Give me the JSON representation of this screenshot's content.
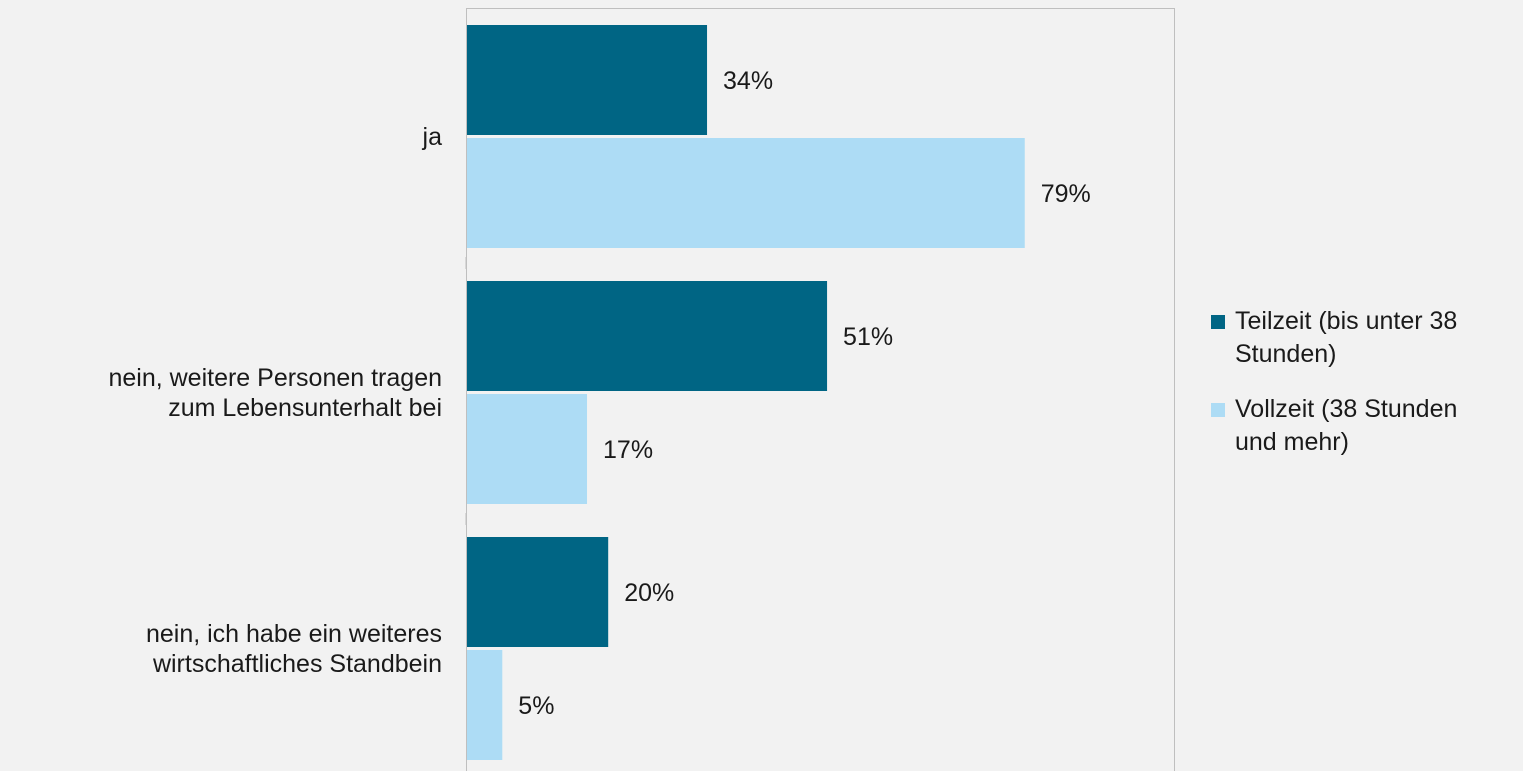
{
  "chart_data": {
    "type": "bar",
    "orientation": "horizontal",
    "categories": [
      "ja",
      "nein, weitere Personen tragen zum Lebensunterhalt bei",
      "nein, ich habe ein weiteres wirtschaftliches Standbein"
    ],
    "category_lines": [
      [
        "ja"
      ],
      [
        "nein, weitere Personen tragen",
        "zum Lebensunterhalt bei"
      ],
      [
        "nein, ich habe ein weiteres",
        "wirtschaftliches Standbein"
      ]
    ],
    "series": [
      {
        "name": "Teilzeit (bis unter 38 Stunden)",
        "values": [
          34,
          51,
          20
        ],
        "labels": [
          "34%",
          "51%",
          "20%"
        ],
        "color": "#006584"
      },
      {
        "name": "Vollzeit (38 Stunden und mehr)",
        "values": [
          79,
          17,
          5
        ],
        "labels": [
          "79%",
          "17%",
          "5%"
        ],
        "color": "#addcf5"
      }
    ],
    "legend_lines": [
      [
        "Teilzeit (bis unter 38",
        "Stunden)"
      ],
      [
        "Vollzeit (38 Stunden",
        "und mehr)"
      ]
    ],
    "xlim": [
      0,
      100
    ],
    "unit": "%",
    "grid": false,
    "legend_position": "right",
    "title": "",
    "xlabel": "",
    "ylabel": ""
  },
  "colors": {
    "background": "#f2f2f2",
    "plot_border": "#bfbfbf"
  }
}
